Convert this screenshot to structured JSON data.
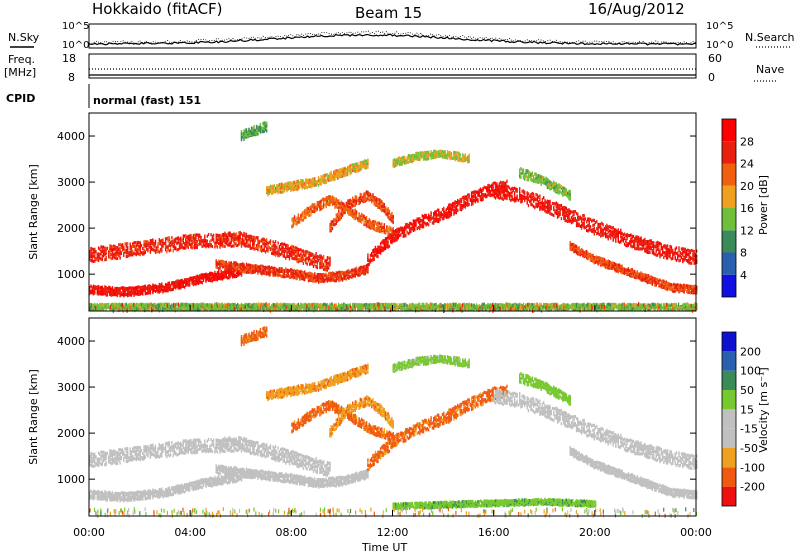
{
  "header": {
    "station": "Hokkaido (fitACF)",
    "beam": "Beam 15",
    "date": "16/Aug/2012"
  },
  "noise_panel": {
    "left_label": "N.Sky",
    "right_label": "N.Search",
    "y_top_left": "10^5",
    "y_bot_left": "10^0",
    "y_top_right": "10^5",
    "y_bot_right": "10^0"
  },
  "freq_panel": {
    "left_label_1": "Freq.",
    "left_label_2": "[MHz]",
    "left_top": "18",
    "left_bot": "8",
    "right_label": "Nave",
    "right_top": "60",
    "right_bot": "0"
  },
  "cpid_panel": {
    "label": "CPID",
    "value": "normal (fast) 151"
  },
  "colors": {
    "power": [
      "#1010e0",
      "#2a5fb0",
      "#3a8a5a",
      "#6fbf3a",
      "#f0a020",
      "#f06010",
      "#e82010",
      "#ff0000"
    ],
    "velocity": [
      "#ee1010",
      "#f05a10",
      "#f0a020",
      "#c0c0c0",
      "#c0c0c0",
      "#78c830",
      "#3a8a5a",
      "#2a5fb0",
      "#1010d0"
    ]
  },
  "chart_data": [
    {
      "type": "heatmap",
      "name": "power",
      "ylabel": "Slant Range [km]",
      "xlabel": "",
      "xlim": [
        "00:00",
        "24:00"
      ],
      "ylim": [
        200,
        4500
      ],
      "y_ticks": [
        "1000",
        "2000",
        "3000",
        "4000"
      ],
      "colorbar_label": "Power [dB]",
      "colorbar_ticks": [
        "4",
        "8",
        "12",
        "16",
        "20",
        "24",
        "28"
      ],
      "colorbar_range": [
        0,
        32
      ],
      "bands": [
        {
          "x": [
            0,
            2,
            4,
            6,
            8,
            9.5
          ],
          "y": [
            1400,
            1550,
            1700,
            1750,
            1450,
            1200
          ],
          "width": 300,
          "value": 26
        },
        {
          "x": [
            0,
            1.5,
            3,
            4.5,
            6
          ],
          "y": [
            650,
            600,
            700,
            900,
            1050
          ],
          "width": 180,
          "value": 28
        },
        {
          "x": [
            5,
            6.5,
            8,
            9,
            10,
            11
          ],
          "y": [
            1200,
            1100,
            1000,
            900,
            950,
            1100
          ],
          "width": 180,
          "value": 25
        },
        {
          "x": [
            8,
            8.8,
            9.5,
            10.2,
            11,
            12
          ],
          "y": [
            2100,
            2400,
            2600,
            2400,
            2100,
            1900
          ],
          "width": 200,
          "value": 22
        },
        {
          "x": [
            9.5,
            10.2,
            11,
            11.5,
            12
          ],
          "y": [
            2000,
            2500,
            2700,
            2500,
            2200
          ],
          "width": 200,
          "value": 24
        },
        {
          "x": [
            11,
            12,
            13,
            14,
            15,
            16,
            16.5
          ],
          "y": [
            1300,
            1800,
            2100,
            2300,
            2600,
            2850,
            2900
          ],
          "width": 260,
          "value": 28
        },
        {
          "x": [
            16,
            17,
            18,
            19,
            20,
            21,
            22,
            23,
            24
          ],
          "y": [
            2800,
            2700,
            2500,
            2250,
            2000,
            1800,
            1600,
            1450,
            1350
          ],
          "width": 300,
          "value": 27
        },
        {
          "x": [
            19,
            20,
            21,
            22,
            23,
            24
          ],
          "y": [
            1600,
            1300,
            1100,
            900,
            700,
            650
          ],
          "width": 160,
          "value": 24
        },
        {
          "x": [
            7,
            8,
            9,
            10,
            11
          ],
          "y": [
            2800,
            2900,
            3000,
            3200,
            3400
          ],
          "width": 180,
          "value": 18
        },
        {
          "x": [
            12,
            13,
            14,
            15
          ],
          "y": [
            3400,
            3550,
            3600,
            3500
          ],
          "width": 160,
          "value": 16
        },
        {
          "x": [
            6,
            7
          ],
          "y": [
            4000,
            4200
          ],
          "width": 200,
          "value": 12
        },
        {
          "x": [
            17,
            18,
            19
          ],
          "y": [
            3200,
            3000,
            2700
          ],
          "width": 200,
          "value": 14
        },
        {
          "x": [
            0,
            24
          ],
          "y": [
            280,
            280
          ],
          "width": 120,
          "value": 14
        }
      ]
    },
    {
      "type": "heatmap",
      "name": "velocity",
      "ylabel": "Slant Range [km]",
      "xlabel": "Time UT",
      "xlim": [
        "00:00",
        "24:00"
      ],
      "ylim": [
        200,
        4500
      ],
      "x_ticks": [
        "00:00",
        "04:00",
        "08:00",
        "12:00",
        "16:00",
        "20:00",
        "00:00"
      ],
      "y_ticks": [
        "1000",
        "2000",
        "3000",
        "4000"
      ],
      "colorbar_label": "Velocity [m s⁻¹]",
      "colorbar_ticks": [
        "-200",
        "-100",
        "-50",
        "-15",
        "15",
        "50",
        "100",
        "200"
      ],
      "bands": [
        {
          "x": [
            0,
            2,
            4,
            6,
            8,
            9.5
          ],
          "y": [
            1400,
            1550,
            1700,
            1750,
            1450,
            1200
          ],
          "width": 300,
          "value": 0
        },
        {
          "x": [
            0,
            1.5,
            3,
            4.5,
            6
          ],
          "y": [
            650,
            600,
            700,
            900,
            1050
          ],
          "width": 180,
          "value": 0
        },
        {
          "x": [
            5,
            6.5,
            8,
            9,
            10,
            11
          ],
          "y": [
            1200,
            1100,
            1000,
            900,
            950,
            1100
          ],
          "width": 180,
          "value": 0
        },
        {
          "x": [
            8,
            8.8,
            9.5,
            10.2,
            11,
            12
          ],
          "y": [
            2100,
            2400,
            2600,
            2400,
            2100,
            1900
          ],
          "width": 200,
          "value": -60
        },
        {
          "x": [
            9.5,
            10.2,
            11,
            11.5,
            12
          ],
          "y": [
            2000,
            2500,
            2700,
            2500,
            2200
          ],
          "width": 200,
          "value": -40
        },
        {
          "x": [
            11,
            12,
            13,
            14,
            15,
            16,
            16.5
          ],
          "y": [
            1300,
            1800,
            2100,
            2300,
            2600,
            2850,
            2900
          ],
          "width": 260,
          "value": -60
        },
        {
          "x": [
            16,
            17,
            18,
            19,
            20,
            21,
            22,
            23,
            24
          ],
          "y": [
            2800,
            2700,
            2500,
            2250,
            2000,
            1800,
            1600,
            1450,
            1350
          ],
          "width": 300,
          "value": 0
        },
        {
          "x": [
            19,
            20,
            21,
            22,
            23,
            24
          ],
          "y": [
            1600,
            1300,
            1100,
            900,
            700,
            650
          ],
          "width": 160,
          "value": 0
        },
        {
          "x": [
            7,
            8,
            9,
            10,
            11
          ],
          "y": [
            2800,
            2900,
            3000,
            3200,
            3400
          ],
          "width": 180,
          "value": -40
        },
        {
          "x": [
            12,
            13,
            14,
            15
          ],
          "y": [
            3400,
            3550,
            3600,
            3500
          ],
          "width": 160,
          "value": 25
        },
        {
          "x": [
            6,
            7
          ],
          "y": [
            4000,
            4200
          ],
          "width": 200,
          "value": -60
        },
        {
          "x": [
            17,
            18,
            19
          ],
          "y": [
            3200,
            3000,
            2700
          ],
          "width": 200,
          "value": 30
        },
        {
          "x": [
            12,
            15,
            18,
            20
          ],
          "y": [
            400,
            450,
            500,
            450
          ],
          "width": 120,
          "value": 40
        }
      ]
    }
  ]
}
